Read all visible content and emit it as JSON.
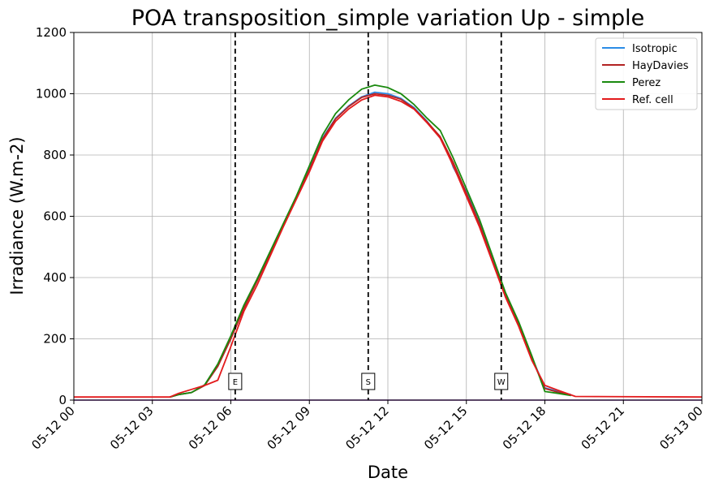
{
  "chart_data": {
    "type": "line",
    "title": "POA transposition_simple variation Up - simple",
    "xlabel": "Date",
    "ylabel": "Irradiance (W.m-2)",
    "xlim": [
      "05-12 00",
      "05-13 00"
    ],
    "ylim": [
      0,
      1200
    ],
    "x_ticks": [
      "05-12 00",
      "05-12 03",
      "05-12 06",
      "05-12 09",
      "05-12 12",
      "05-12 15",
      "05-12 18",
      "05-12 21",
      "05-13 00"
    ],
    "y_ticks": [
      0,
      200,
      400,
      600,
      800,
      1000,
      1200
    ],
    "grid": true,
    "legend_position": "top-right",
    "series": [
      {
        "name": "Isotropic",
        "color": "#2b8ce6",
        "x": [
          "05-12 03:40",
          "05-12 04:00",
          "05-12 04:30",
          "05-12 05:00",
          "05-12 05:30",
          "05-12 06:00",
          "05-12 06:30",
          "05-12 07:00",
          "05-12 07:30",
          "05-12 08:00",
          "05-12 08:30",
          "05-12 09:00",
          "05-12 09:30",
          "05-12 10:00",
          "05-12 10:30",
          "05-12 11:00",
          "05-12 11:30",
          "05-12 12:00",
          "05-12 12:30",
          "05-12 13:00",
          "05-12 13:30",
          "05-12 14:00",
          "05-12 14:20",
          "05-12 14:30",
          "05-12 15:00",
          "05-12 15:30",
          "05-12 16:00",
          "05-12 16:30",
          "05-12 17:00",
          "05-12 17:30",
          "05-12 18:00",
          "05-12 18:30",
          "05-12 19:00"
        ],
        "values": [
          10,
          18,
          25,
          50,
          115,
          205,
          305,
          390,
          480,
          570,
          660,
          755,
          855,
          920,
          960,
          990,
          1005,
          1000,
          985,
          955,
          910,
          855,
          800,
          760,
          680,
          580,
          460,
          345,
          250,
          140,
          40,
          28,
          18
        ]
      },
      {
        "name": "HayDavies",
        "color": "#b22222",
        "x": [
          "05-12 03:40",
          "05-12 04:00",
          "05-12 04:30",
          "05-12 05:00",
          "05-12 05:30",
          "05-12 06:00",
          "05-12 06:30",
          "05-12 07:00",
          "05-12 07:30",
          "05-12 08:00",
          "05-12 08:30",
          "05-12 09:00",
          "05-12 09:30",
          "05-12 10:00",
          "05-12 10:30",
          "05-12 11:00",
          "05-12 11:30",
          "05-12 12:00",
          "05-12 12:30",
          "05-12 13:00",
          "05-12 13:30",
          "05-12 14:00",
          "05-12 14:30",
          "05-12 15:00",
          "05-12 15:30",
          "05-12 16:00",
          "05-12 16:30",
          "05-12 17:00",
          "05-12 17:30",
          "05-12 18:00",
          "05-12 18:30",
          "05-12 19:00"
        ],
        "values": [
          10,
          18,
          25,
          48,
          110,
          200,
          300,
          388,
          478,
          568,
          658,
          752,
          852,
          918,
          958,
          988,
          1000,
          995,
          982,
          952,
          908,
          860,
          775,
          675,
          575,
          455,
          340,
          245,
          135,
          38,
          26,
          16
        ]
      },
      {
        "name": "Perez",
        "color": "#1a8a0e",
        "x": [
          "05-12 03:40",
          "05-12 04:00",
          "05-12 04:30",
          "05-12 05:00",
          "05-12 05:30",
          "05-12 06:00",
          "05-12 06:30",
          "05-12 07:00",
          "05-12 07:30",
          "05-12 08:00",
          "05-12 08:30",
          "05-12 09:00",
          "05-12 09:30",
          "05-12 10:00",
          "05-12 10:30",
          "05-12 11:00",
          "05-12 11:30",
          "05-12 12:00",
          "05-12 12:30",
          "05-12 13:00",
          "05-12 13:30",
          "05-12 14:00",
          "05-12 14:30",
          "05-12 15:00",
          "05-12 15:30",
          "05-12 16:00",
          "05-12 16:30",
          "05-12 17:00",
          "05-12 17:30",
          "05-12 18:00",
          "05-12 18:30",
          "05-12 19:00"
        ],
        "values": [
          10,
          18,
          25,
          50,
          118,
          210,
          310,
          395,
          485,
          575,
          665,
          765,
          865,
          935,
          980,
          1015,
          1028,
          1020,
          1000,
          965,
          920,
          880,
          790,
          690,
          590,
          470,
          350,
          255,
          145,
          28,
          22,
          15
        ]
      },
      {
        "name": "Ref. cell",
        "color": "#e31a1c",
        "x": [
          "05-12 00:00",
          "05-12 03:40",
          "05-12 04:00",
          "05-12 04:30",
          "05-12 05:00",
          "05-12 05:30",
          "05-12 06:00",
          "05-12 06:30",
          "05-12 07:00",
          "05-12 07:30",
          "05-12 08:00",
          "05-12 08:30",
          "05-12 09:00",
          "05-12 09:30",
          "05-12 10:00",
          "05-12 10:30",
          "05-12 11:00",
          "05-12 11:30",
          "05-12 12:00",
          "05-12 12:30",
          "05-12 13:00",
          "05-12 13:30",
          "05-12 14:00",
          "05-12 14:30",
          "05-12 15:00",
          "05-12 15:30",
          "05-12 16:00",
          "05-12 16:30",
          "05-12 17:00",
          "05-12 17:30",
          "05-12 18:00",
          "05-12 18:30",
          "05-12 19:10",
          "05-13 00:00"
        ],
        "values": [
          10,
          10,
          22,
          35,
          48,
          65,
          175,
          290,
          375,
          470,
          565,
          655,
          745,
          845,
          910,
          950,
          980,
          995,
          990,
          975,
          950,
          905,
          855,
          765,
          665,
          565,
          450,
          335,
          240,
          130,
          48,
          32,
          12,
          10
        ]
      }
    ],
    "baseline": {
      "color": "#6a1b9a",
      "value": 0
    },
    "vertical_markers": [
      {
        "label": "E",
        "x": "05-12 06:10"
      },
      {
        "label": "S",
        "x": "05-12 11:15"
      },
      {
        "label": "W",
        "x": "05-12 16:20"
      }
    ]
  }
}
